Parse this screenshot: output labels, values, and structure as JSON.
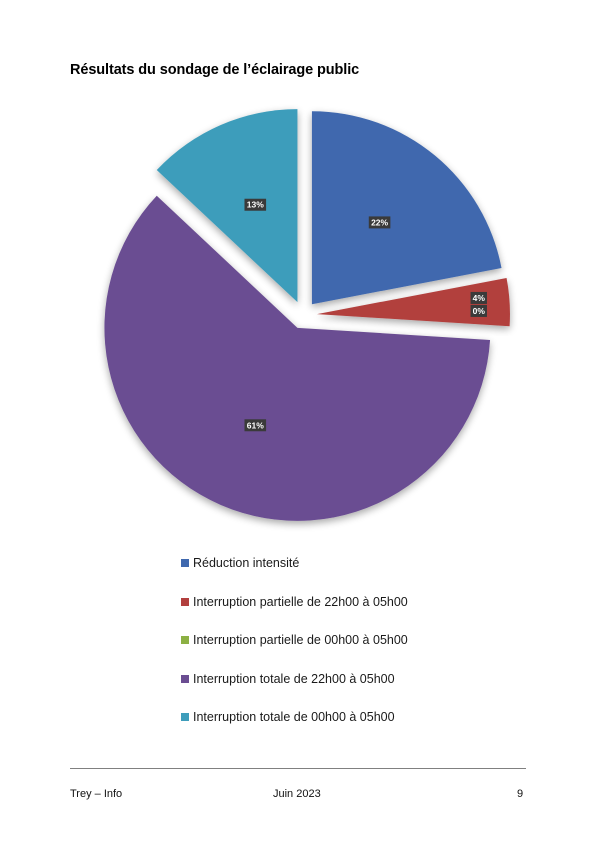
{
  "page": {
    "title": "Résultats du sondage de l’éclairage public"
  },
  "chart_data": {
    "type": "pie",
    "title": "",
    "series": [
      {
        "name": "Réduction intensité",
        "value": 22,
        "label": "22%",
        "color": "#3F68AE"
      },
      {
        "name": "Interruption partielle de 22h00 à 05h00",
        "value": 4,
        "label": "4%",
        "color": "#B23F3E"
      },
      {
        "name": "Interruption partielle de 00h00 à 05h00",
        "value": 0,
        "label": "0%",
        "color": "#8CB043"
      },
      {
        "name": "Interruption totale de 22h00 à 05h00",
        "value": 61,
        "label": "61%",
        "color": "#6B4D92"
      },
      {
        "name": "Interruption totale de 00h00 à 05h00",
        "value": 13,
        "label": "13%",
        "color": "#3E9DBB"
      }
    ],
    "legend_position": "bottom",
    "exploded": true
  },
  "footer": {
    "left": "Trey – Info",
    "center": "Juin 2023",
    "page_number": "9"
  }
}
